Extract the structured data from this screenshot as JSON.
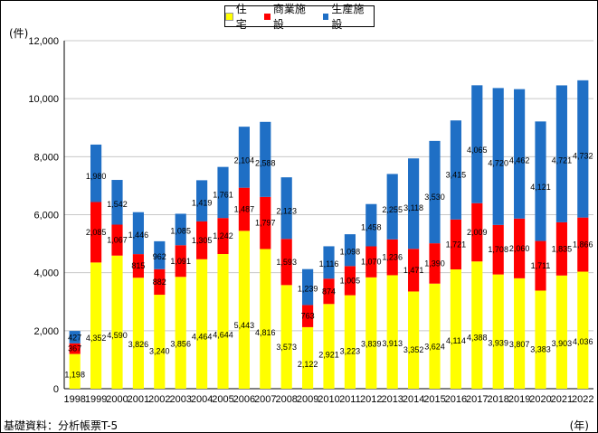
{
  "chart_data": {
    "type": "bar",
    "stacked": true,
    "y_unit_label": "(件)",
    "x_unit_label": "(年)",
    "source_note": "基礎資料：分析帳票T-5",
    "ylim": [
      0,
      12000
    ],
    "yticks": [
      0,
      2000,
      4000,
      6000,
      8000,
      10000,
      12000
    ],
    "ytick_labels": [
      "0",
      "2,000",
      "4,000",
      "6,000",
      "8,000",
      "10,000",
      "12,000"
    ],
    "grid": true,
    "legend_position": "top-center",
    "categories": [
      "1998",
      "1999",
      "2000",
      "2001",
      "2002",
      "2003",
      "2004",
      "2005",
      "2006",
      "2007",
      "2008",
      "2009",
      "2010",
      "2011",
      "2012",
      "2013",
      "2014",
      "2015",
      "2016",
      "2017",
      "2018",
      "2019",
      "2020",
      "2021",
      "2022"
    ],
    "series": [
      {
        "name": "住宅",
        "color": "#ffff00",
        "values": [
          1198,
          4352,
          4590,
          3826,
          3240,
          3856,
          4464,
          4644,
          5443,
          4816,
          3573,
          2122,
          2921,
          3223,
          3839,
          3913,
          3352,
          3624,
          4114,
          4388,
          3939,
          3807,
          3383,
          3903,
          4036
        ],
        "labels": [
          "1,198",
          "4,352",
          "4,590",
          "3,826",
          "3,240",
          "3,856",
          "4,464",
          "4,644",
          "5,443",
          "4,816",
          "3,573",
          "2,122",
          "2,921",
          "3,223",
          "3,839",
          "3,913",
          "3,352",
          "3,624",
          "4,114",
          "4,388",
          "3,939",
          "3,807",
          "3,383",
          "3,903",
          "4,036"
        ]
      },
      {
        "name": "商業施設",
        "color": "#ff0000",
        "values": [
          367,
          2085,
          1067,
          815,
          882,
          1091,
          1305,
          1242,
          1487,
          1797,
          1593,
          763,
          874,
          1005,
          1070,
          1236,
          1471,
          1390,
          1721,
          2009,
          1708,
          2060,
          1711,
          1835,
          1866
        ],
        "labels": [
          "367",
          "2,085",
          "1,067",
          "815",
          "882",
          "1,091",
          "1,305",
          "1,242",
          "1,487",
          "1,797",
          "1,593",
          "763",
          "874",
          "1,005",
          "1,070",
          "1,236",
          "1,471",
          "1,390",
          "1,721",
          "2,009",
          "1,708",
          "2,060",
          "1,711",
          "1,835",
          "1,866"
        ]
      },
      {
        "name": "生産施設",
        "color": "#1f6fc5",
        "values": [
          427,
          1980,
          1542,
          1446,
          962,
          1085,
          1419,
          1761,
          2104,
          2588,
          2123,
          1239,
          1116,
          1098,
          1458,
          2255,
          3118,
          3530,
          3415,
          4065,
          4720,
          4462,
          4121,
          4721,
          4732
        ],
        "labels": [
          "427",
          "1,980",
          "1,542",
          "1,446",
          "962",
          "1,085",
          "1,419",
          "1,761",
          "2,104",
          "2,588",
          "2,123",
          "1,239",
          "1,116",
          "1,098",
          "1,458",
          "2,255",
          "3,118",
          "3,530",
          "3,415",
          "4,065",
          "4,720",
          "4,462",
          "4,121",
          "4,721",
          "4,732"
        ]
      }
    ]
  }
}
